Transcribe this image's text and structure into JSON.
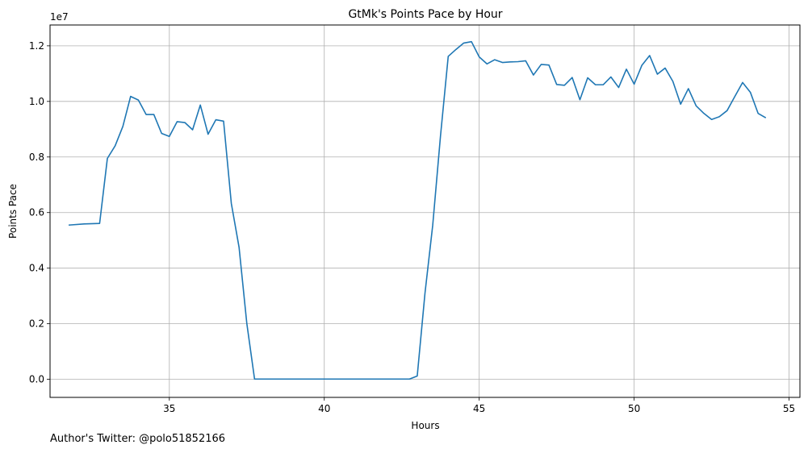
{
  "chart_data": {
    "type": "line",
    "title": "GtMk's Points Pace by Hour",
    "xlabel": "Hours",
    "ylabel": "Points Pace",
    "offset_label": "1e7",
    "xlim": [
      31.15,
      55.35
    ],
    "ylim": [
      -0.065,
      1.275
    ],
    "xticks": [
      35,
      40,
      45,
      50,
      55
    ],
    "yticks": [
      0.0,
      0.2,
      0.4,
      0.6,
      0.8,
      1.0,
      1.2
    ],
    "ytick_labels": [
      "0.0",
      "0.2",
      "0.4",
      "0.6",
      "0.8",
      "1.0",
      "1.2"
    ],
    "grid": true,
    "line_color": "#1f77b4",
    "series": [
      {
        "x": [
          31.75,
          32.25,
          32.75,
          33.0,
          33.25,
          33.5,
          33.75,
          34.0,
          34.25,
          34.5,
          34.75,
          35.0,
          35.25,
          35.5,
          35.75,
          36.0,
          36.25,
          36.5,
          36.75,
          37.0,
          37.25,
          37.5,
          37.75,
          38.0,
          42.75,
          43.0,
          43.25,
          43.5,
          43.75,
          44.0,
          44.25,
          44.5,
          44.75,
          45.0,
          45.25,
          45.5,
          45.75,
          46.0,
          46.25,
          46.5,
          46.75,
          47.0,
          47.25,
          47.5,
          47.75,
          48.0,
          48.25,
          48.5,
          48.75,
          49.0,
          49.25,
          49.5,
          49.75,
          50.0,
          50.25,
          50.5,
          50.75,
          51.0,
          51.25,
          51.5,
          51.75,
          52.0,
          52.25,
          52.5,
          52.75,
          53.0,
          53.25,
          53.5,
          53.75,
          54.0,
          54.25
        ],
        "y": [
          0.555,
          0.559,
          0.561,
          0.795,
          0.84,
          0.91,
          1.018,
          1.005,
          0.953,
          0.953,
          0.885,
          0.874,
          0.927,
          0.924,
          0.898,
          0.987,
          0.882,
          0.934,
          0.929,
          0.633,
          0.475,
          0.201,
          0.001,
          0.001,
          0.001,
          0.012,
          0.31,
          0.555,
          0.875,
          1.162,
          1.187,
          1.21,
          1.215,
          1.16,
          1.135,
          1.15,
          1.14,
          1.142,
          1.143,
          1.146,
          1.095,
          1.133,
          1.131,
          1.061,
          1.058,
          1.086,
          1.006,
          1.085,
          1.06,
          1.06,
          1.088,
          1.05,
          1.116,
          1.062,
          1.13,
          1.165,
          1.098,
          1.12,
          1.072,
          0.99,
          1.046,
          0.984,
          0.957,
          0.935,
          0.945,
          0.967,
          1.018,
          1.068,
          1.033,
          0.957,
          0.941
        ]
      }
    ]
  },
  "footer": {
    "credit": "Author's Twitter: @polo51852166"
  }
}
